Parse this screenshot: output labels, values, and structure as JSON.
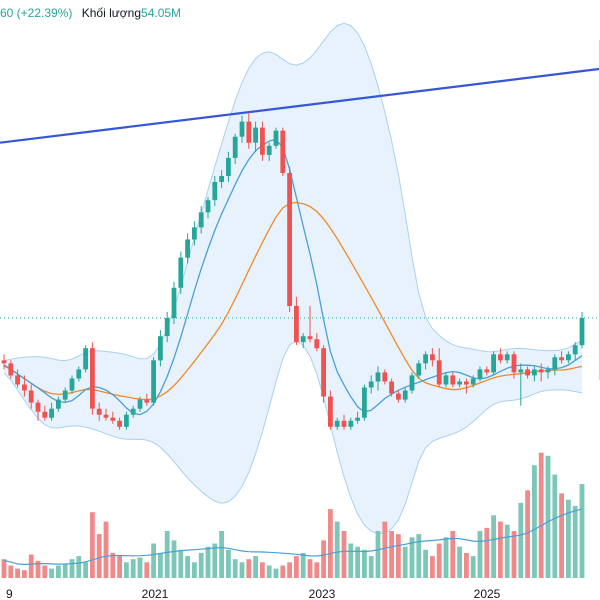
{
  "header": {
    "change_text": "60 (+22.39%)",
    "volume_label": "Khối lượng",
    "volume_value": "54.05M"
  },
  "colors": {
    "up": "#26a69a",
    "down": "#ef5350",
    "vol_up": "#7cc7b8",
    "vol_down": "#f08a8a",
    "ma_fast": "#4a9fd8",
    "ma_slow": "#f0892b",
    "band_fill": "#e3f0fb",
    "band_line": "#a9d1f0",
    "trendline": "#3556d8",
    "vol_ma": "#4a9fd8"
  },
  "chart_data": {
    "type": "candlestick",
    "x_tick_labels": [
      "9",
      "2021",
      "2023",
      "2025"
    ],
    "price_range": [
      -62,
      120
    ],
    "candles": [
      {
        "o": 14,
        "h": 16,
        "l": 11,
        "c": 13
      },
      {
        "o": 13,
        "h": 14,
        "l": 8,
        "c": 9
      },
      {
        "o": 9,
        "h": 11,
        "l": 5,
        "c": 6
      },
      {
        "o": 6,
        "h": 9,
        "l": 2,
        "c": 4
      },
      {
        "o": 4,
        "h": 6,
        "l": -2,
        "c": 0
      },
      {
        "o": 0,
        "h": 1,
        "l": -6,
        "c": -3
      },
      {
        "o": -3,
        "h": -1,
        "l": -6,
        "c": -5
      },
      {
        "o": -5,
        "h": 0,
        "l": -6,
        "c": -2
      },
      {
        "o": -2,
        "h": 2,
        "l": -3,
        "c": 1
      },
      {
        "o": 1,
        "h": 5,
        "l": 0,
        "c": 4
      },
      {
        "o": 4,
        "h": 9,
        "l": 3,
        "c": 8
      },
      {
        "o": 8,
        "h": 12,
        "l": 7,
        "c": 11
      },
      {
        "o": 11,
        "h": 19,
        "l": 10,
        "c": 18
      },
      {
        "o": 18,
        "h": 20,
        "l": -4,
        "c": -2
      },
      {
        "o": -2,
        "h": 0,
        "l": -6,
        "c": -4
      },
      {
        "o": -4,
        "h": -2,
        "l": -6,
        "c": -5
      },
      {
        "o": -5,
        "h": -3,
        "l": -7,
        "c": -6
      },
      {
        "o": -6,
        "h": -5,
        "l": -9,
        "c": -8
      },
      {
        "o": -8,
        "h": -3,
        "l": -9,
        "c": -4
      },
      {
        "o": -4,
        "h": -1,
        "l": -5,
        "c": -2
      },
      {
        "o": -2,
        "h": 2,
        "l": -3,
        "c": 1
      },
      {
        "o": 1,
        "h": 3,
        "l": -1,
        "c": 0
      },
      {
        "o": 0,
        "h": 15,
        "l": -1,
        "c": 14
      },
      {
        "o": 14,
        "h": 24,
        "l": 12,
        "c": 22
      },
      {
        "o": 22,
        "h": 30,
        "l": 20,
        "c": 28
      },
      {
        "o": 28,
        "h": 40,
        "l": 26,
        "c": 38
      },
      {
        "o": 38,
        "h": 50,
        "l": 36,
        "c": 48
      },
      {
        "o": 48,
        "h": 56,
        "l": 46,
        "c": 54
      },
      {
        "o": 54,
        "h": 60,
        "l": 52,
        "c": 58
      },
      {
        "o": 58,
        "h": 65,
        "l": 56,
        "c": 63
      },
      {
        "o": 63,
        "h": 68,
        "l": 61,
        "c": 67
      },
      {
        "o": 67,
        "h": 75,
        "l": 65,
        "c": 73
      },
      {
        "o": 73,
        "h": 77,
        "l": 71,
        "c": 75
      },
      {
        "o": 75,
        "h": 83,
        "l": 73,
        "c": 81
      },
      {
        "o": 81,
        "h": 89,
        "l": 79,
        "c": 88
      },
      {
        "o": 88,
        "h": 95,
        "l": 86,
        "c": 93
      },
      {
        "o": 93,
        "h": 96,
        "l": 84,
        "c": 86
      },
      {
        "o": 86,
        "h": 93,
        "l": 83,
        "c": 91
      },
      {
        "o": 91,
        "h": 93,
        "l": 80,
        "c": 82
      },
      {
        "o": 82,
        "h": 86,
        "l": 80,
        "c": 85
      },
      {
        "o": 85,
        "h": 91,
        "l": 84,
        "c": 90
      },
      {
        "o": 90,
        "h": 91,
        "l": 75,
        "c": 76
      },
      {
        "o": 76,
        "h": 78,
        "l": 30,
        "c": 32
      },
      {
        "o": 32,
        "h": 35,
        "l": 19,
        "c": 20
      },
      {
        "o": 20,
        "h": 23,
        "l": 18,
        "c": 22
      },
      {
        "o": 22,
        "h": 32,
        "l": 20,
        "c": 21
      },
      {
        "o": 21,
        "h": 23,
        "l": 17,
        "c": 18
      },
      {
        "o": 18,
        "h": 19,
        "l": 0,
        "c": 2
      },
      {
        "o": 2,
        "h": 4,
        "l": -9,
        "c": -8
      },
      {
        "o": -8,
        "h": -5,
        "l": -9,
        "c": -6
      },
      {
        "o": -6,
        "h": -4,
        "l": -9,
        "c": -8
      },
      {
        "o": -8,
        "h": -5,
        "l": -9,
        "c": -6
      },
      {
        "o": -6,
        "h": -3,
        "l": -7,
        "c": -5
      },
      {
        "o": -5,
        "h": 6,
        "l": -6,
        "c": 5
      },
      {
        "o": 5,
        "h": 9,
        "l": 3,
        "c": 7
      },
      {
        "o": 7,
        "h": 12,
        "l": 4,
        "c": 10
      },
      {
        "o": 10,
        "h": 11,
        "l": 6,
        "c": 7
      },
      {
        "o": 7,
        "h": 8,
        "l": 2,
        "c": 3
      },
      {
        "o": 3,
        "h": 4,
        "l": 0,
        "c": 1
      },
      {
        "o": 1,
        "h": 5,
        "l": 0,
        "c": 4
      },
      {
        "o": 4,
        "h": 10,
        "l": 3,
        "c": 9
      },
      {
        "o": 9,
        "h": 14,
        "l": 8,
        "c": 13
      },
      {
        "o": 13,
        "h": 17,
        "l": 11,
        "c": 16
      },
      {
        "o": 16,
        "h": 18,
        "l": 12,
        "c": 14
      },
      {
        "o": 14,
        "h": 18,
        "l": 5,
        "c": 6
      },
      {
        "o": 6,
        "h": 10,
        "l": 5,
        "c": 9
      },
      {
        "o": 9,
        "h": 10,
        "l": 5,
        "c": 6
      },
      {
        "o": 6,
        "h": 8,
        "l": 5,
        "c": 7
      },
      {
        "o": 7,
        "h": 8,
        "l": 3,
        "c": 6
      },
      {
        "o": 6,
        "h": 9,
        "l": 5,
        "c": 8
      },
      {
        "o": 8,
        "h": 12,
        "l": 7,
        "c": 11
      },
      {
        "o": 11,
        "h": 12,
        "l": 9,
        "c": 10
      },
      {
        "o": 10,
        "h": 17,
        "l": 9,
        "c": 16
      },
      {
        "o": 16,
        "h": 18,
        "l": 13,
        "c": 14
      },
      {
        "o": 14,
        "h": 17,
        "l": 13,
        "c": 16
      },
      {
        "o": 16,
        "h": 17,
        "l": 8,
        "c": 10
      },
      {
        "o": 10,
        "h": 13,
        "l": -1,
        "c": 11
      },
      {
        "o": 11,
        "h": 12,
        "l": 8,
        "c": 9
      },
      {
        "o": 9,
        "h": 12,
        "l": 7,
        "c": 11
      },
      {
        "o": 11,
        "h": 13,
        "l": 7,
        "c": 10
      },
      {
        "o": 10,
        "h": 12,
        "l": 8,
        "c": 11
      },
      {
        "o": 11,
        "h": 16,
        "l": 9,
        "c": 15
      },
      {
        "o": 15,
        "h": 17,
        "l": 13,
        "c": 14
      },
      {
        "o": 14,
        "h": 17,
        "l": 13,
        "c": 16
      },
      {
        "o": 16,
        "h": 20,
        "l": 14,
        "c": 19
      },
      {
        "o": 19,
        "h": 30,
        "l": 18,
        "c": 28
      }
    ],
    "volume": [
      12,
      8,
      6,
      5,
      15,
      11,
      8,
      6,
      8,
      9,
      12,
      14,
      10,
      42,
      28,
      36,
      16,
      14,
      10,
      12,
      13,
      10,
      22,
      16,
      30,
      24,
      18,
      14,
      10,
      16,
      20,
      22,
      30,
      18,
      12,
      10,
      12,
      14,
      10,
      8,
      6,
      8,
      10,
      14,
      16,
      12,
      10,
      24,
      44,
      36,
      30,
      22,
      20,
      18,
      14,
      30,
      36,
      30,
      28,
      20,
      26,
      28,
      18,
      14,
      22,
      26,
      30,
      20,
      16,
      14,
      30,
      32,
      40,
      36,
      34,
      30,
      48,
      56,
      72,
      80,
      78,
      66,
      54,
      50,
      46,
      60
    ],
    "volume_range": [
      0,
      120
    ]
  }
}
